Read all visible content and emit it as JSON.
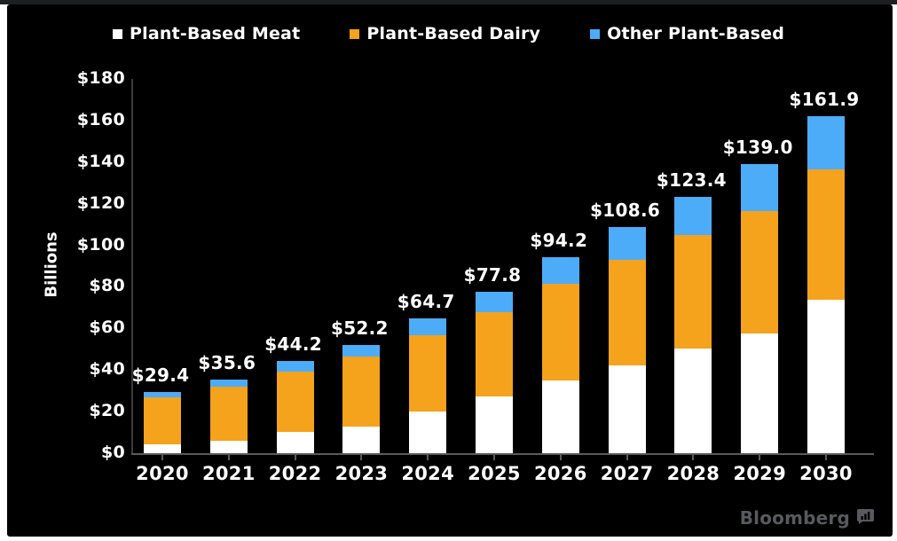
{
  "colors": {
    "background": "#000000",
    "meat": "#ffffff",
    "dairy": "#f5a21c",
    "other": "#4dacf7",
    "axis": "#5a5a5a",
    "text": "#ffffff",
    "logo_gray": "#595a5e"
  },
  "legend": {
    "items": [
      {
        "label": "Plant-Based Meat",
        "series": "meat",
        "color": "#ffffff"
      },
      {
        "label": "Plant-Based Dairy",
        "series": "dairy",
        "color": "#f5a21c"
      },
      {
        "label": "Other Plant-Based",
        "series": "other",
        "color": "#4dacf7"
      }
    ]
  },
  "y_axis": {
    "title": "Billions",
    "tick_values": [
      0,
      20,
      40,
      60,
      80,
      100,
      120,
      140,
      160,
      180
    ],
    "tick_labels": [
      "$0",
      "$20",
      "$40",
      "$60",
      "$80",
      "$100",
      "$120",
      "$140",
      "$160",
      "$180"
    ]
  },
  "chart_data": {
    "type": "bar",
    "stacked": true,
    "title": "",
    "unit": "USD billions",
    "xlabel": "",
    "ylabel": "Billions",
    "ylim": [
      0,
      180
    ],
    "grid": false,
    "legend_position": "top",
    "categories": [
      "2020",
      "2021",
      "2022",
      "2023",
      "2024",
      "2025",
      "2026",
      "2027",
      "2028",
      "2029",
      "2030"
    ],
    "series": [
      {
        "name": "Plant-Based Meat",
        "color": "#ffffff",
        "values": [
          4.2,
          5.8,
          10.4,
          12.9,
          20.0,
          27.4,
          34.8,
          42.4,
          50.2,
          57.7,
          73.7
        ]
      },
      {
        "name": "Plant-Based Dairy",
        "color": "#f5a21c",
        "values": [
          22.5,
          26.2,
          28.8,
          33.5,
          36.6,
          40.6,
          46.7,
          50.5,
          54.7,
          58.9,
          62.8
        ]
      },
      {
        "name": "Other Plant-Based",
        "color": "#4dacf7",
        "values": [
          2.7,
          3.6,
          5.0,
          5.8,
          8.1,
          9.8,
          12.7,
          15.7,
          18.5,
          22.4,
          25.4
        ]
      }
    ],
    "totals": [
      29.4,
      35.6,
      44.2,
      52.2,
      64.7,
      77.8,
      94.2,
      108.6,
      123.4,
      139.0,
      161.9
    ],
    "total_labels": [
      "$29.4",
      "$35.6",
      "$44.2",
      "$52.2",
      "$64.7",
      "$77.8",
      "$94.2",
      "$108.6",
      "$123.4",
      "$139.0",
      "$161.9"
    ]
  },
  "branding": {
    "logo_text": "Bloomberg",
    "logo_icon": "bar-chart-icon"
  }
}
